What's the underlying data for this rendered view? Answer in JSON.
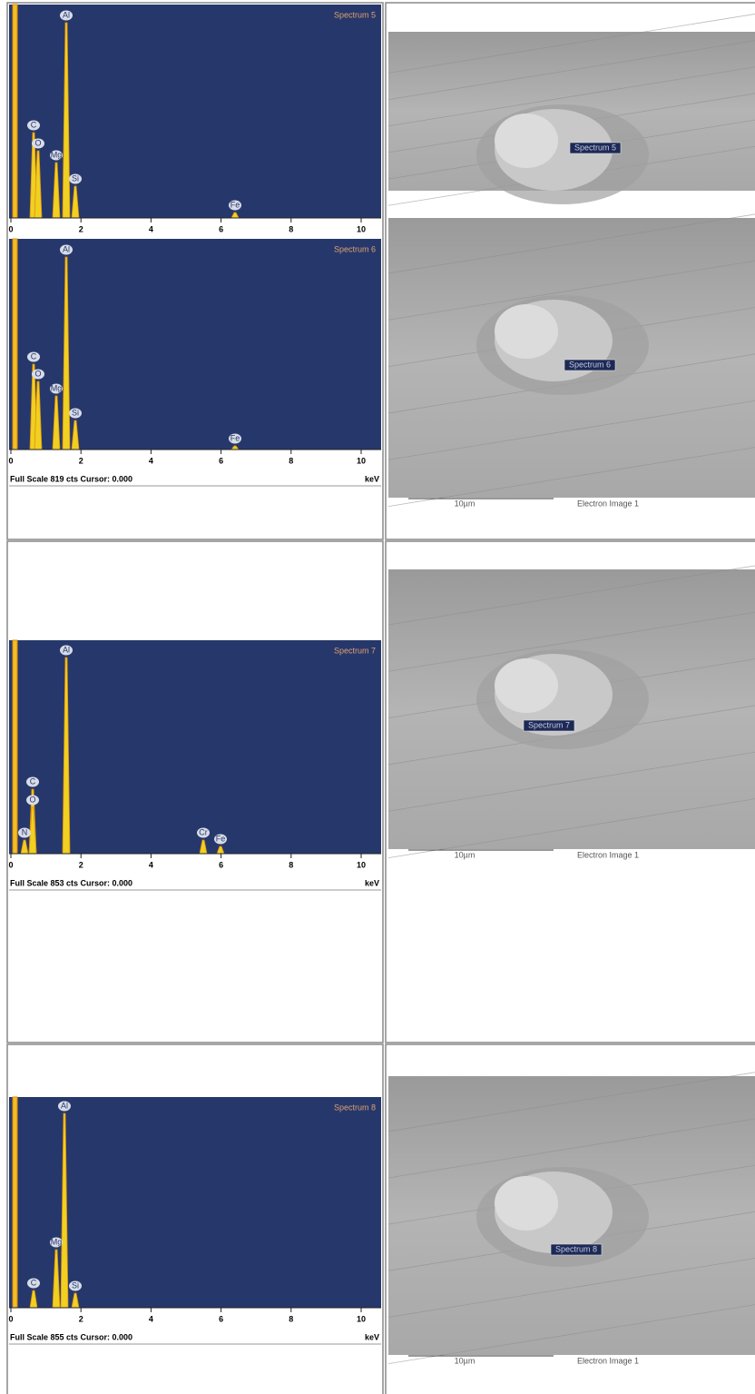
{
  "rows": [
    {
      "spectra": [
        {
          "title": "Spectrum 5",
          "peaks": [
            "Al",
            "C",
            "O",
            "Mg",
            "Si",
            "Fe"
          ],
          "xticks": [
            0,
            2,
            4,
            6,
            8,
            10
          ]
        },
        {
          "title": "Spectrum 6",
          "peaks": [
            "Al",
            "C",
            "O",
            "Mg",
            "Si",
            "Fe"
          ],
          "xticks": [
            0,
            2,
            4,
            6,
            8,
            10
          ],
          "full_scale": "Full Scale 819 cts Cursor: 0.000",
          "unit": "keV"
        }
      ],
      "images": [
        {
          "label": "Spectrum 5"
        },
        {
          "label": "Spectrum 6",
          "scale": "10µm",
          "caption": "Electron Image 1"
        }
      ]
    },
    {
      "spectra": [
        {
          "title": "Spectrum 7",
          "peaks": [
            "Al",
            "C",
            "O",
            "N",
            "Cr",
            "Fe"
          ],
          "xticks": [
            0,
            2,
            4,
            6,
            8,
            10
          ],
          "full_scale": "Full Scale 853 cts Cursor: 0.000",
          "unit": "keV"
        }
      ],
      "images": [
        {
          "label": "Spectrum 7",
          "scale": "10µm",
          "caption": "Electron Image 1"
        }
      ]
    },
    {
      "spectra": [
        {
          "title": "Spectrum 8",
          "peaks": [
            "Al",
            "Mg",
            "C",
            "Si"
          ],
          "xticks": [
            0,
            2,
            4,
            6,
            8,
            10
          ],
          "full_scale": "Full Scale 855 cts Cursor: 0.000",
          "unit": "keV"
        }
      ],
      "images": [
        {
          "label": "Spectrum 8",
          "scale": "10µm",
          "caption": "Electron Image 1"
        }
      ]
    }
  ]
}
